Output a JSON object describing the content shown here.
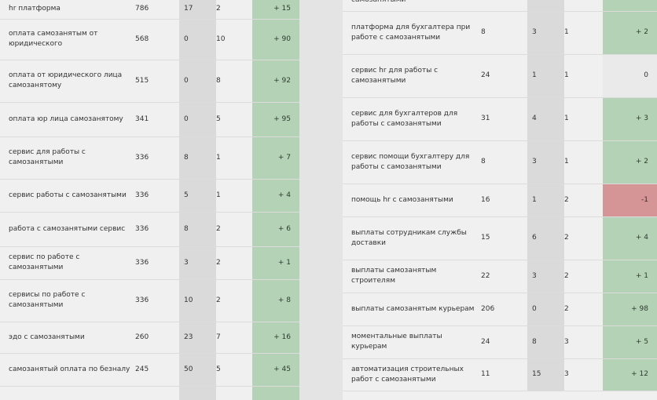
{
  "left_table": {
    "rows": [
      {
        "query": "hr платформа",
        "volume": "786",
        "c1": "17",
        "c2": "2",
        "delta": "+ 15",
        "status": "pos"
      },
      {
        "query": "оплата самозанятым от юридического",
        "volume": "568",
        "c1": "0",
        "c2": "10",
        "delta": "+ 90",
        "status": "pos"
      },
      {
        "query": "оплата от юридического лица самозанятому",
        "volume": "515",
        "c1": "0",
        "c2": "8",
        "delta": "+ 92",
        "status": "pos"
      },
      {
        "query": "оплата юр лица самозанятому",
        "volume": "341",
        "c1": "0",
        "c2": "5",
        "delta": "+ 95",
        "status": "pos"
      },
      {
        "query": "сервис для работы с самозанятыми",
        "volume": "336",
        "c1": "8",
        "c2": "1",
        "delta": "+ 7",
        "status": "pos"
      },
      {
        "query": "сервис работы с самозанятыми",
        "volume": "336",
        "c1": "5",
        "c2": "1",
        "delta": "+ 4",
        "status": "pos"
      },
      {
        "query": "работа с самозанятыми сервис",
        "volume": "336",
        "c1": "8",
        "c2": "2",
        "delta": "+ 6",
        "status": "pos"
      },
      {
        "query": "сервис по работе с самозанятыми",
        "volume": "336",
        "c1": "3",
        "c2": "2",
        "delta": "+ 1",
        "status": "pos"
      },
      {
        "query": "сервисы по работе с самозанятыми",
        "volume": "336",
        "c1": "10",
        "c2": "2",
        "delta": "+ 8",
        "status": "pos"
      },
      {
        "query": "эдо с самозанятыми",
        "volume": "260",
        "c1": "23",
        "c2": "7",
        "delta": "+ 16",
        "status": "pos"
      },
      {
        "query": "самозанятый оплата по безналу",
        "volume": "245",
        "c1": "50",
        "c2": "5",
        "delta": "+ 45",
        "status": "pos"
      },
      {
        "query": "",
        "volume": "",
        "c1": "",
        "c2": "",
        "delta": "",
        "status": "pos"
      }
    ]
  },
  "right_table": {
    "rows": [
      {
        "query": "самозанятыми",
        "volume": "",
        "c1": "",
        "c2": "",
        "delta": "",
        "status": "pos"
      },
      {
        "query": "платформа для бухгалтера при работе с самозанятыми",
        "volume": "8",
        "c1": "3",
        "c2": "1",
        "delta": "+ 2",
        "status": "pos"
      },
      {
        "query": "сервис hr для работы с самозанятыми",
        "volume": "24",
        "c1": "1",
        "c2": "1",
        "delta": "0",
        "status": "zero"
      },
      {
        "query": "сервис для бухгалтеров для работы с самозанятыми",
        "volume": "31",
        "c1": "4",
        "c2": "1",
        "delta": "+ 3",
        "status": "pos"
      },
      {
        "query": "сервис помощи бухгалтеру для работы с самозанятыми",
        "volume": "8",
        "c1": "3",
        "c2": "1",
        "delta": "+ 2",
        "status": "pos"
      },
      {
        "query": "помощь hr с самозанятыми",
        "volume": "16",
        "c1": "1",
        "c2": "2",
        "delta": "-1",
        "status": "neg"
      },
      {
        "query": "выплаты сотрудникам службы доставки",
        "volume": "15",
        "c1": "6",
        "c2": "2",
        "delta": "+ 4",
        "status": "pos"
      },
      {
        "query": "выплаты самозанятым строителям",
        "volume": "22",
        "c1": "3",
        "c2": "2",
        "delta": "+ 1",
        "status": "pos"
      },
      {
        "query": "выплаты самозанятым курьерам",
        "volume": "206",
        "c1": "0",
        "c2": "2",
        "delta": "+ 98",
        "status": "pos"
      },
      {
        "query": "моментальные выплаты курьерам",
        "volume": "24",
        "c1": "8",
        "c2": "3",
        "delta": "+ 5",
        "status": "pos"
      },
      {
        "query": "автоматизация строительных работ с самозанятыми",
        "volume": "11",
        "c1": "15",
        "c2": "3",
        "delta": "+ 12",
        "status": "pos"
      }
    ]
  }
}
